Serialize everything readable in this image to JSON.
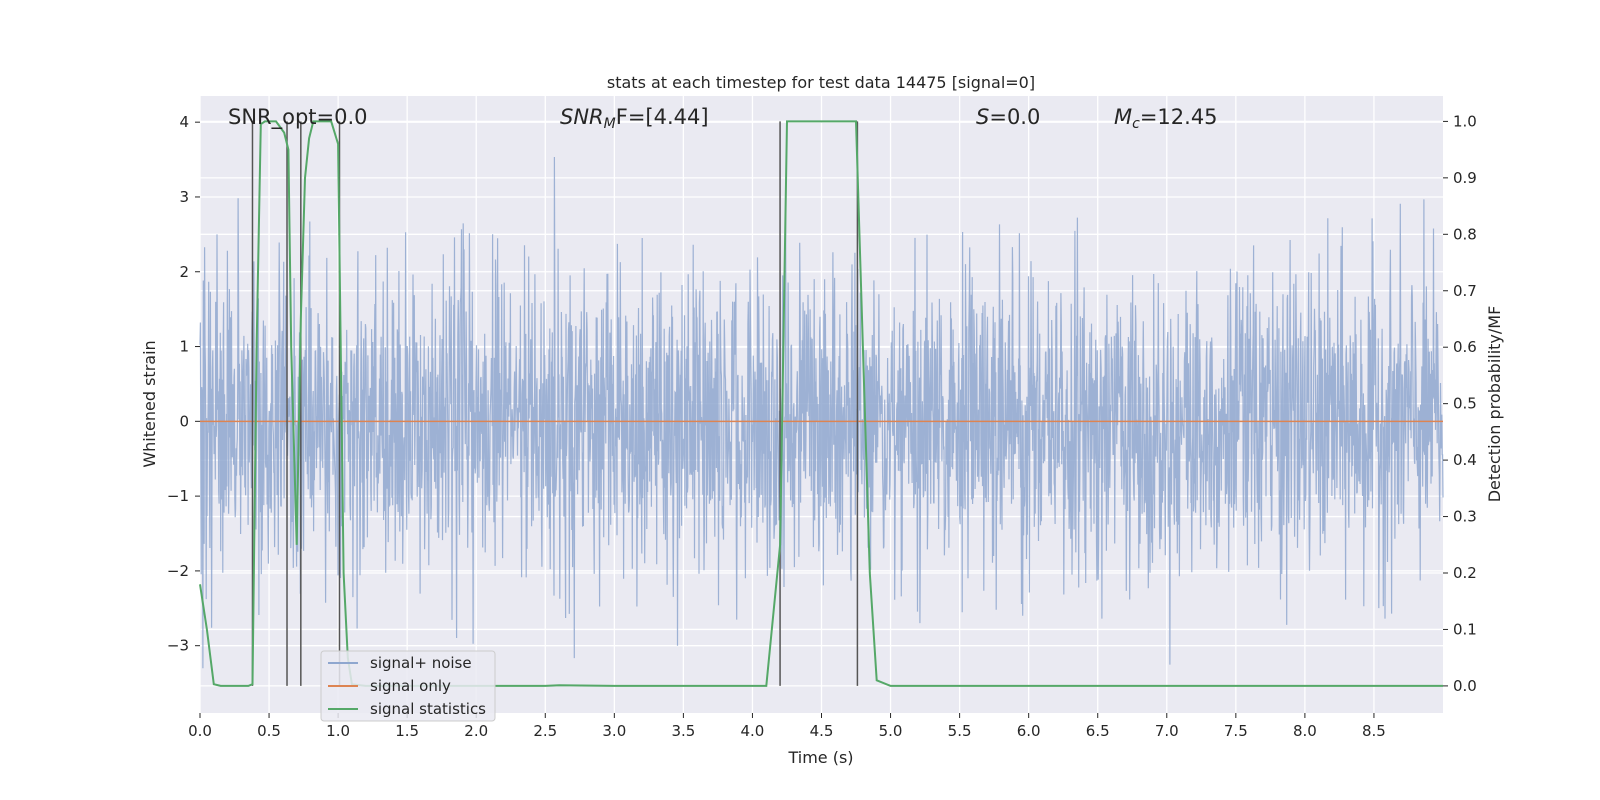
{
  "chart_data": {
    "type": "line",
    "title": "stats at each timestep for test data 14475 [signal=0]",
    "xlabel": "Time (s)",
    "ylabel": "Whitened strain",
    "y2label": "Detection probability/MF",
    "xlim": [
      0.0,
      9.0
    ],
    "ylim": [
      -3.9,
      4.35
    ],
    "y2lim": [
      -0.048,
      1.045
    ],
    "xticks": [
      "0.0",
      "0.5",
      "1.0",
      "1.5",
      "2.0",
      "2.5",
      "3.0",
      "3.5",
      "4.0",
      "4.5",
      "5.0",
      "5.5",
      "6.0",
      "6.5",
      "7.0",
      "7.5",
      "8.0",
      "8.5"
    ],
    "yticks": [
      "4",
      "3",
      "2",
      "1",
      "0",
      "−1",
      "−2",
      "−3"
    ],
    "y2ticks": [
      "1.0",
      "0.9",
      "0.8",
      "0.7",
      "0.6",
      "0.5",
      "0.4",
      "0.3",
      "0.2",
      "0.1",
      "0.0"
    ],
    "grid": true,
    "legend_position": "lower-left",
    "annotations": {
      "snr_opt": "SNR_opt=0.0",
      "snr_mf_sym": "SNR",
      "snr_mf_sub": "M",
      "snr_mf_tail": "F=[4.44]",
      "s_sym": "S",
      "s_tail": "=0.0",
      "mc_sym": "M",
      "mc_sub": "c",
      "mc_tail": "=12.45"
    },
    "series": [
      {
        "name": "signal+ noise",
        "color": "#8fa7cf",
        "kind": "noise",
        "noise_sigma": 1.0,
        "peak_max": 3.9,
        "trough_min": -3.5
      },
      {
        "name": "signal only",
        "color": "#dd8452",
        "kind": "constant",
        "value": 0.0
      },
      {
        "name": "signal statistics",
        "color": "#55a868",
        "kind": "line",
        "axis": "right",
        "x": [
          0.0,
          0.05,
          0.1,
          0.15,
          0.2,
          0.25,
          0.3,
          0.35,
          0.38,
          0.41,
          0.44,
          0.47,
          0.5,
          0.55,
          0.58,
          0.61,
          0.64,
          0.66,
          0.7,
          0.73,
          0.76,
          0.79,
          0.82,
          0.85,
          0.9,
          0.95,
          1.0,
          1.04,
          1.07,
          1.1,
          1.2,
          1.5,
          2.0,
          2.5,
          2.6,
          3.0,
          3.5,
          3.9,
          4.1,
          4.2,
          4.25,
          4.3,
          4.5,
          4.7,
          4.75,
          4.8,
          4.85,
          4.9,
          5.0,
          5.5,
          6.0,
          7.0,
          8.0,
          9.0
        ],
        "y": [
          0.18,
          0.1,
          0.003,
          0.0,
          0.0,
          0.0,
          0.0,
          0.0,
          0.003,
          0.6,
          0.995,
          1.0,
          1.0,
          1.0,
          0.99,
          0.98,
          0.95,
          0.6,
          0.25,
          0.65,
          0.9,
          0.97,
          1.0,
          1.0,
          1.0,
          1.0,
          0.96,
          0.2,
          0.05,
          0.003,
          0.0,
          0.0,
          0.0,
          0.0,
          0.001,
          0.0,
          0.0,
          0.0,
          0.0,
          0.25,
          1.0,
          1.0,
          1.0,
          1.0,
          1.0,
          0.6,
          0.2,
          0.01,
          0.0,
          0.0,
          0.0,
          0.0,
          0.0,
          0.0
        ]
      }
    ],
    "vlines": [
      0.38,
      0.63,
      0.73,
      1.01,
      4.2,
      4.76
    ]
  }
}
